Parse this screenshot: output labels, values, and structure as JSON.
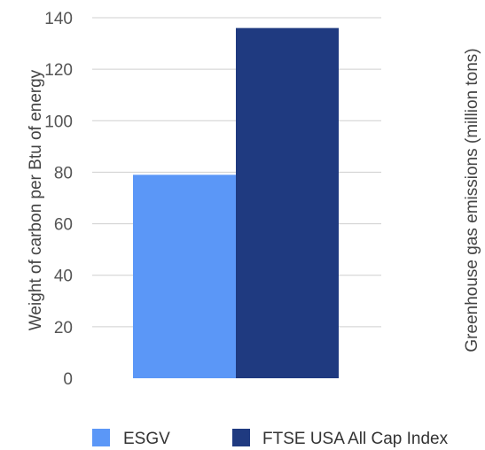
{
  "chart_data": {
    "type": "bar",
    "categories": [
      "ESGV",
      "FTSE USA All Cap Index"
    ],
    "values": [
      79,
      136
    ],
    "colors": [
      "#5b97f7",
      "#1f3a80"
    ],
    "ylabel": "Weight of carbon per Btu of energy",
    "y2label": "Greenhouse gas emissions (million tons)",
    "ylim": [
      0,
      140
    ],
    "yticks": [
      0,
      20,
      40,
      60,
      80,
      100,
      120,
      140
    ],
    "grid": true,
    "legend": {
      "position": "bottom",
      "entries": [
        "ESGV",
        "FTSE USA All Cap Index"
      ]
    }
  }
}
